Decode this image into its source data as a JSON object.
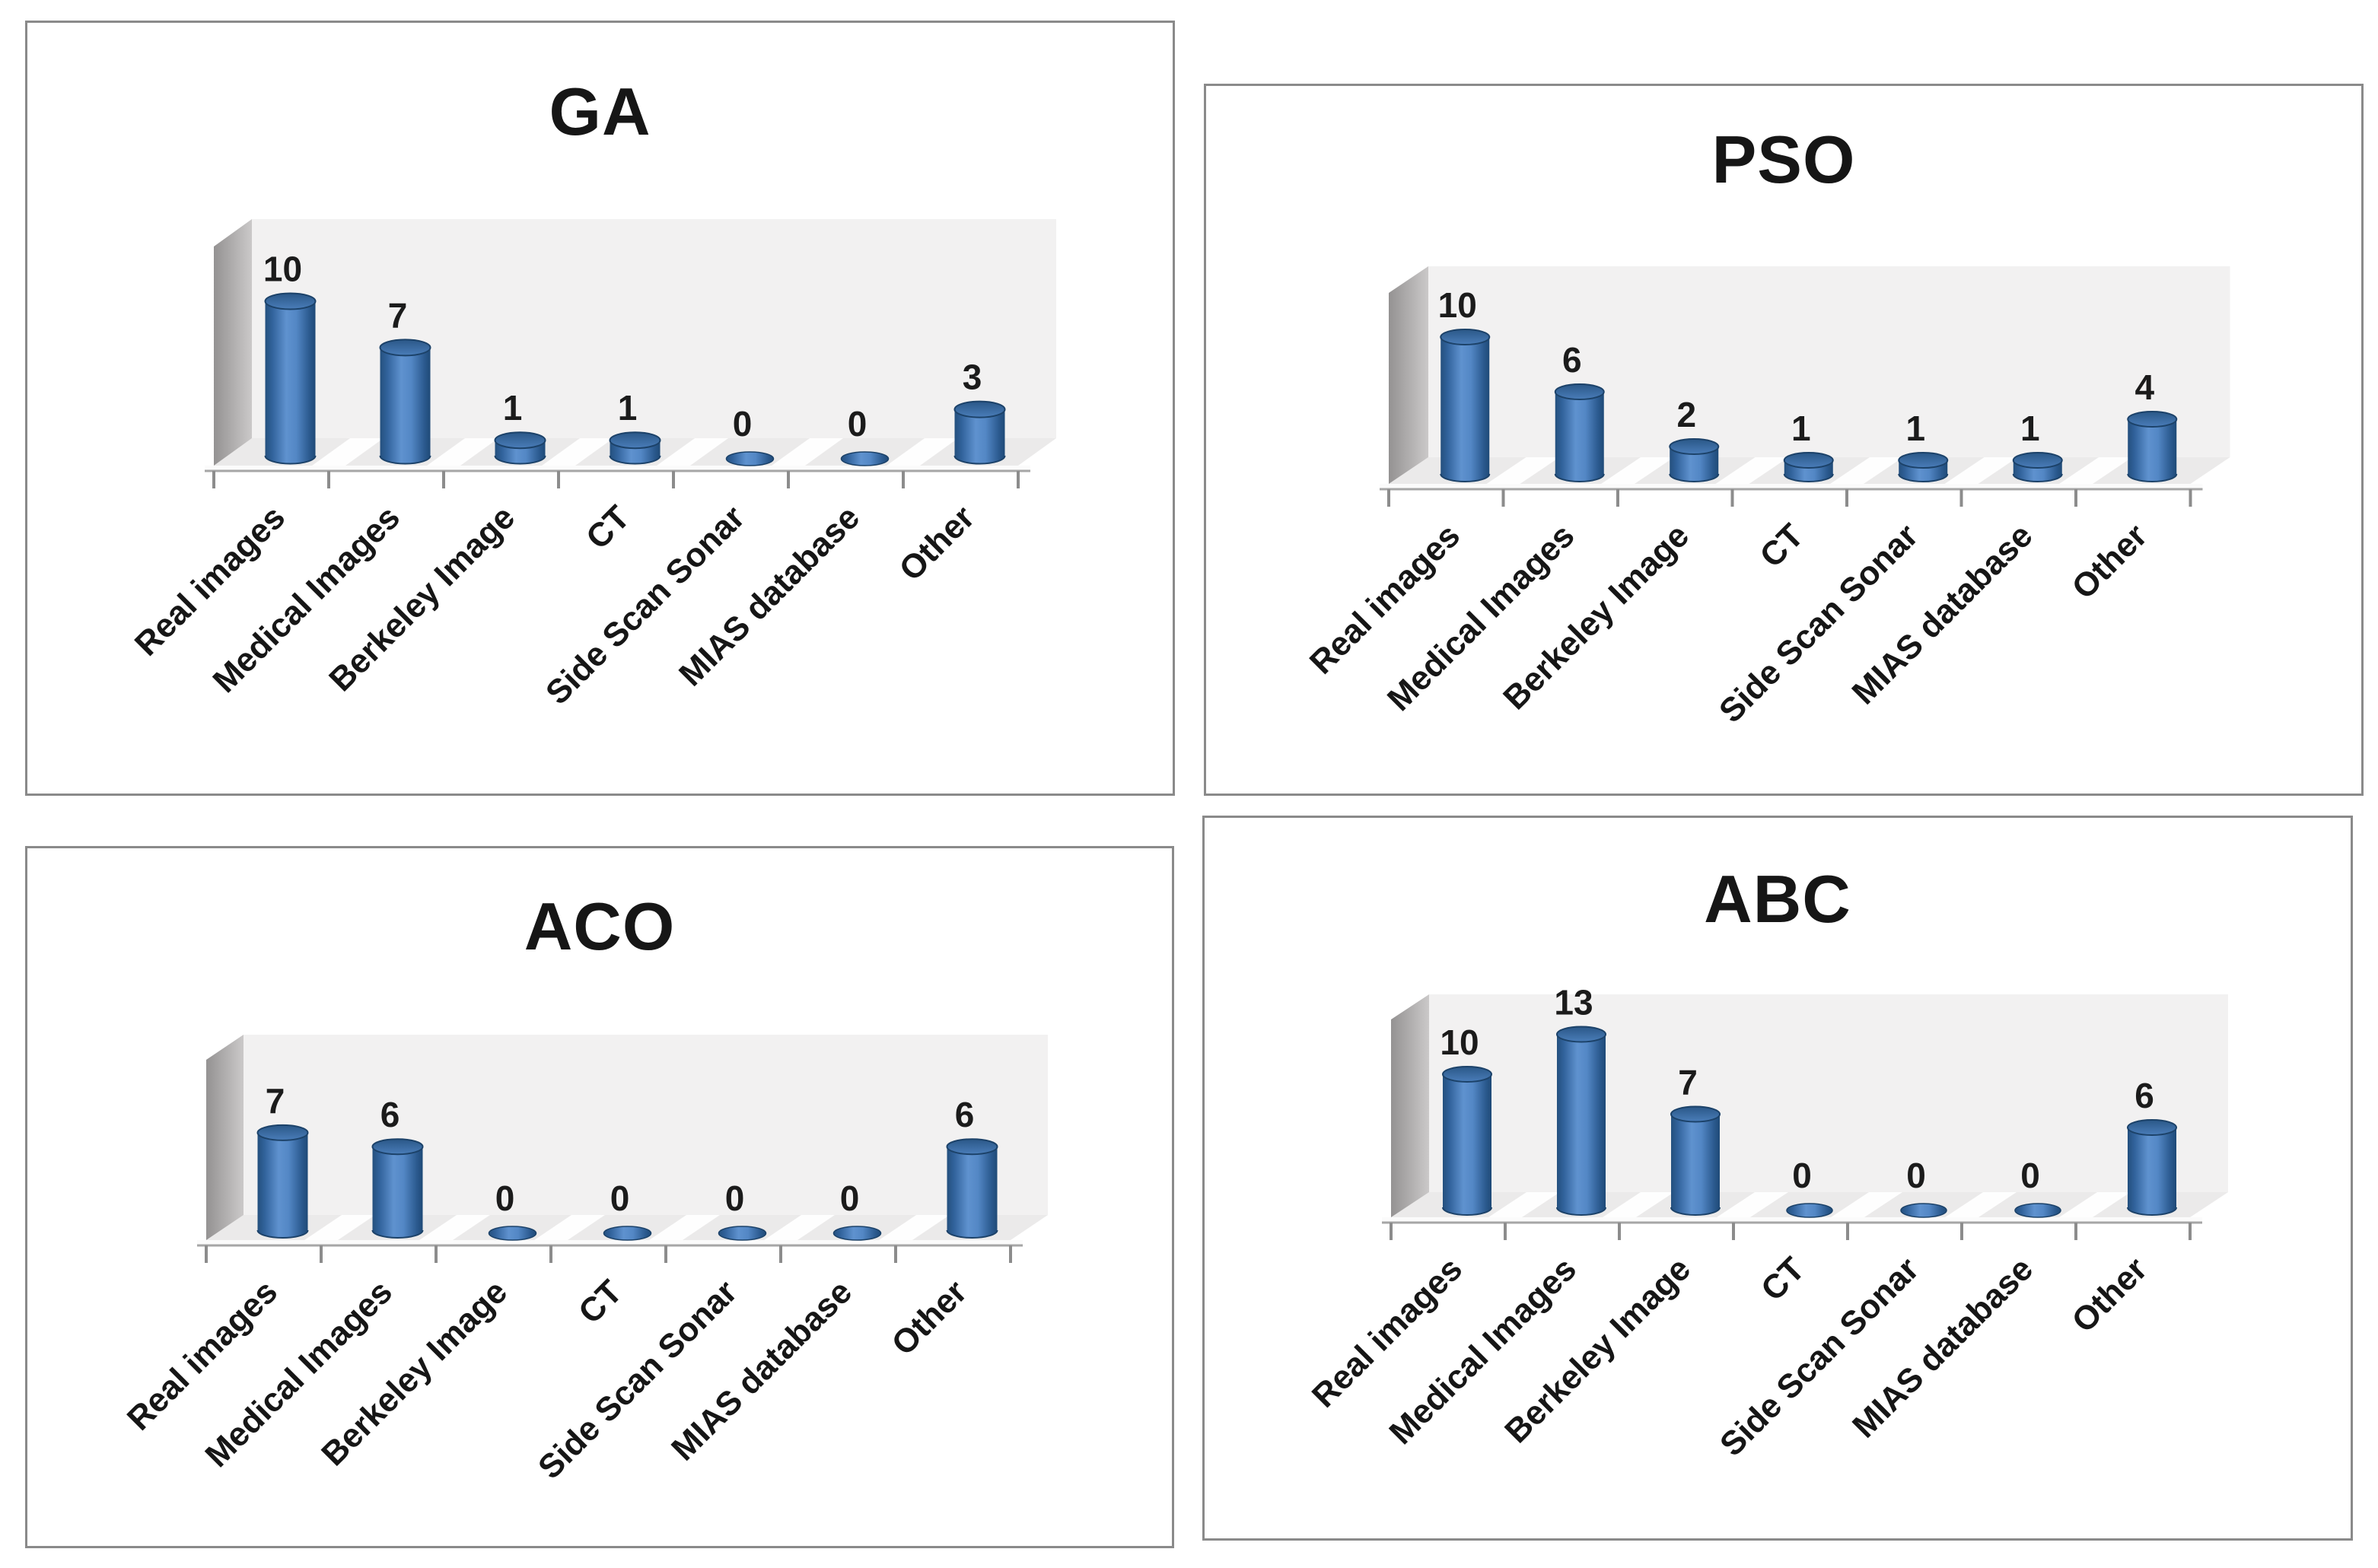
{
  "figure": {
    "background": "#ffffff",
    "panel_border_color": "#8a8a8a",
    "bar_color_main": "#4a80bf",
    "bar_color_dark": "#24507e",
    "wall_color": "#b2b0b0",
    "back_wall_color": "#f2f1f1",
    "floor_color": "#ebeaea",
    "axis_color": "#a6a6a6",
    "label_color": "#161616"
  },
  "chart_data": [
    {
      "type": "bar",
      "title": "GA",
      "categories": [
        "Real images",
        "Medical Images",
        "Berkeley Image",
        "CT",
        "Side Scan Sonar",
        "MIAS database",
        "Other"
      ],
      "values": [
        10,
        7,
        1,
        1,
        0,
        0,
        3
      ],
      "xlabel": "",
      "ylabel": "",
      "data_labels": true,
      "gridlines": false,
      "legend": "none",
      "bar_style": "3d-cylinder"
    },
    {
      "type": "bar",
      "title": "PSO",
      "categories": [
        "Real images",
        "Medical Images",
        "Berkeley Image",
        "CT",
        "Side Scan Sonar",
        "MIAS database",
        "Other"
      ],
      "values": [
        10,
        6,
        2,
        1,
        1,
        1,
        4
      ],
      "xlabel": "",
      "ylabel": "",
      "data_labels": true,
      "gridlines": false,
      "legend": "none",
      "bar_style": "3d-cylinder"
    },
    {
      "type": "bar",
      "title": "ACO",
      "categories": [
        "Real images",
        "Medical Images",
        "Berkeley Image",
        "CT",
        "Side Scan Sonar",
        "MIAS database",
        "Other"
      ],
      "values": [
        7,
        6,
        0,
        0,
        0,
        0,
        6
      ],
      "xlabel": "",
      "ylabel": "",
      "data_labels": true,
      "gridlines": false,
      "legend": "none",
      "bar_style": "3d-cylinder"
    },
    {
      "type": "bar",
      "title": "ABC",
      "categories": [
        "Real images",
        "Medical Images",
        "Berkeley Image",
        "CT",
        "Side Scan Sonar",
        "MIAS database",
        "Other"
      ],
      "values": [
        10,
        13,
        7,
        0,
        0,
        0,
        6
      ],
      "xlabel": "",
      "ylabel": "",
      "data_labels": true,
      "gridlines": false,
      "legend": "none",
      "bar_style": "3d-cylinder"
    }
  ]
}
